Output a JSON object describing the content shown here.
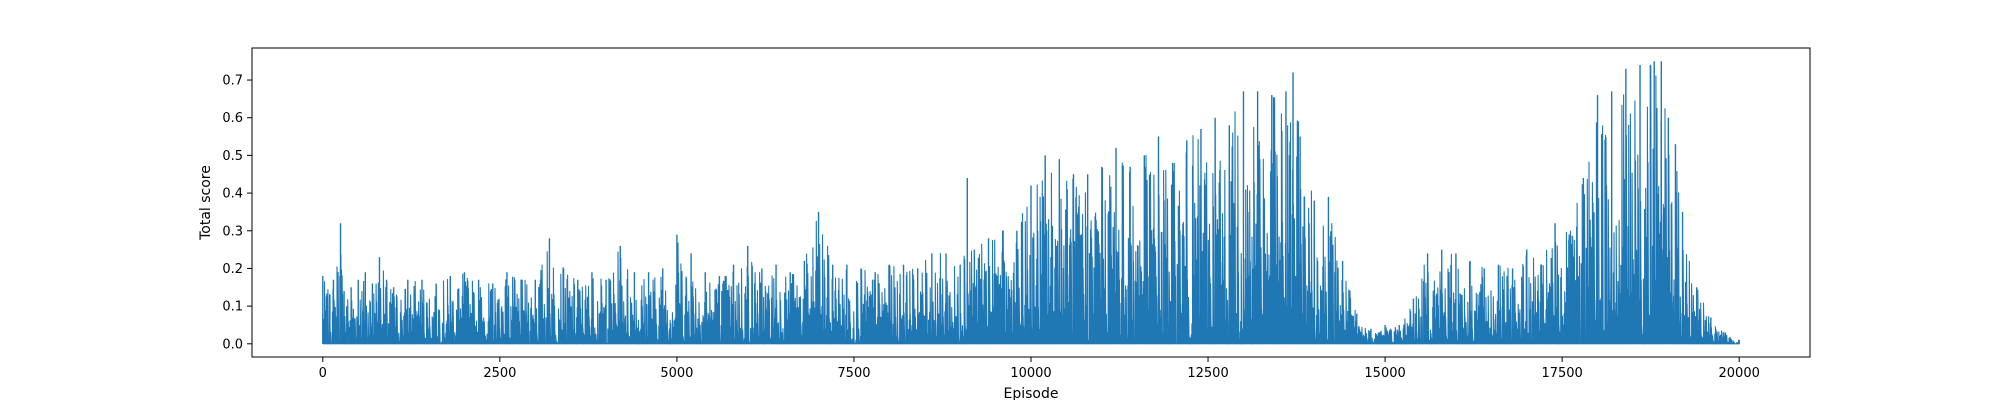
{
  "chart_data": {
    "type": "line",
    "title": "",
    "xlabel": "Episode",
    "ylabel": "Total score",
    "xlim": [
      -1000,
      21000
    ],
    "ylim": [
      -0.035,
      0.785
    ],
    "x_ticks": [
      0,
      2500,
      5000,
      7500,
      10000,
      12500,
      15000,
      17500,
      20000
    ],
    "x_tick_labels": [
      "0",
      "2500",
      "5000",
      "7500",
      "10000",
      "12500",
      "15000",
      "17500",
      "20000"
    ],
    "y_ticks": [
      0.0,
      0.1,
      0.2,
      0.3,
      0.4,
      0.5,
      0.6,
      0.7
    ],
    "y_tick_labels": [
      "0.0",
      "0.1",
      "0.2",
      "0.3",
      "0.4",
      "0.5",
      "0.6",
      "0.7"
    ],
    "grid": false,
    "legend": "none",
    "series_color": "#1f77b4",
    "series": [
      {
        "x": [
          0,
          100,
          150,
          250,
          300,
          400,
          500,
          600,
          700,
          800,
          900,
          1000,
          1200,
          1400,
          1600,
          1800,
          2000,
          2200,
          2400,
          2600,
          2800,
          3000,
          3200,
          3400,
          3600,
          3800,
          4000,
          4200,
          4400,
          4600,
          4800,
          5000,
          5200,
          5400,
          5600,
          5800,
          6000,
          6200,
          6400,
          6600,
          6800,
          7000,
          7200,
          7400,
          7600,
          7800,
          8000,
          8200,
          8400,
          8600,
          8800,
          9000,
          9100,
          9200,
          9400,
          9600,
          9800,
          10000,
          10200,
          10400,
          10600,
          10800,
          11000,
          11200,
          11400,
          11600,
          11800,
          12000,
          12200,
          12400,
          12600,
          12800,
          13000,
          13200,
          13400,
          13600,
          13700,
          13800,
          14000,
          14200,
          14400,
          14600,
          14800,
          15000,
          15200,
          15400,
          15600,
          15800,
          16000,
          16200,
          16400,
          16600,
          16800,
          17000,
          17200,
          17400,
          17600,
          17800,
          18000,
          18200,
          18400,
          18600,
          18800,
          18900,
          19000,
          19100,
          19200,
          19400,
          19600,
          19800,
          20000
        ],
        "y_min": [
          0,
          0,
          0,
          0,
          0,
          0,
          0,
          0,
          0,
          0,
          0,
          0,
          0,
          0,
          0,
          0,
          0,
          0,
          0,
          0,
          0,
          0,
          0,
          0,
          0,
          0,
          0,
          0,
          0,
          0,
          0,
          0,
          0,
          0,
          0,
          0,
          0,
          0,
          0,
          0,
          0,
          0,
          0,
          0,
          0,
          0,
          0,
          0,
          0,
          0,
          0,
          0,
          0,
          0,
          0,
          0,
          0,
          0,
          0,
          0,
          0,
          0,
          0,
          0,
          0,
          0,
          0,
          0,
          0,
          0,
          0,
          0,
          0,
          0,
          0,
          0,
          0,
          0,
          0,
          0,
          0,
          0,
          0,
          0,
          0,
          0,
          0,
          0,
          0,
          0,
          0,
          0,
          0,
          0,
          0,
          0,
          0,
          0,
          0,
          0,
          0,
          0,
          0,
          0,
          0,
          0,
          0,
          0,
          0,
          0,
          0
        ],
        "y_max": [
          0.18,
          0.13,
          0.17,
          0.32,
          0.14,
          0.15,
          0.17,
          0.19,
          0.16,
          0.23,
          0.17,
          0.15,
          0.17,
          0.17,
          0.16,
          0.18,
          0.19,
          0.17,
          0.16,
          0.19,
          0.17,
          0.17,
          0.28,
          0.2,
          0.17,
          0.19,
          0.17,
          0.26,
          0.19,
          0.19,
          0.2,
          0.29,
          0.24,
          0.19,
          0.18,
          0.21,
          0.26,
          0.2,
          0.21,
          0.19,
          0.22,
          0.35,
          0.21,
          0.21,
          0.2,
          0.19,
          0.21,
          0.21,
          0.2,
          0.24,
          0.24,
          0.21,
          0.44,
          0.25,
          0.28,
          0.3,
          0.3,
          0.42,
          0.5,
          0.49,
          0.45,
          0.45,
          0.47,
          0.52,
          0.47,
          0.5,
          0.55,
          0.48,
          0.54,
          0.57,
          0.6,
          0.58,
          0.67,
          0.67,
          0.66,
          0.67,
          0.72,
          0.55,
          0.38,
          0.39,
          0.22,
          0.08,
          0.04,
          0.05,
          0.05,
          0.12,
          0.24,
          0.25,
          0.24,
          0.22,
          0.2,
          0.21,
          0.2,
          0.25,
          0.21,
          0.32,
          0.29,
          0.44,
          0.66,
          0.67,
          0.73,
          0.74,
          0.75,
          0.75,
          0.6,
          0.53,
          0.35,
          0.15,
          0.07,
          0.03,
          0.01
        ]
      }
    ]
  }
}
